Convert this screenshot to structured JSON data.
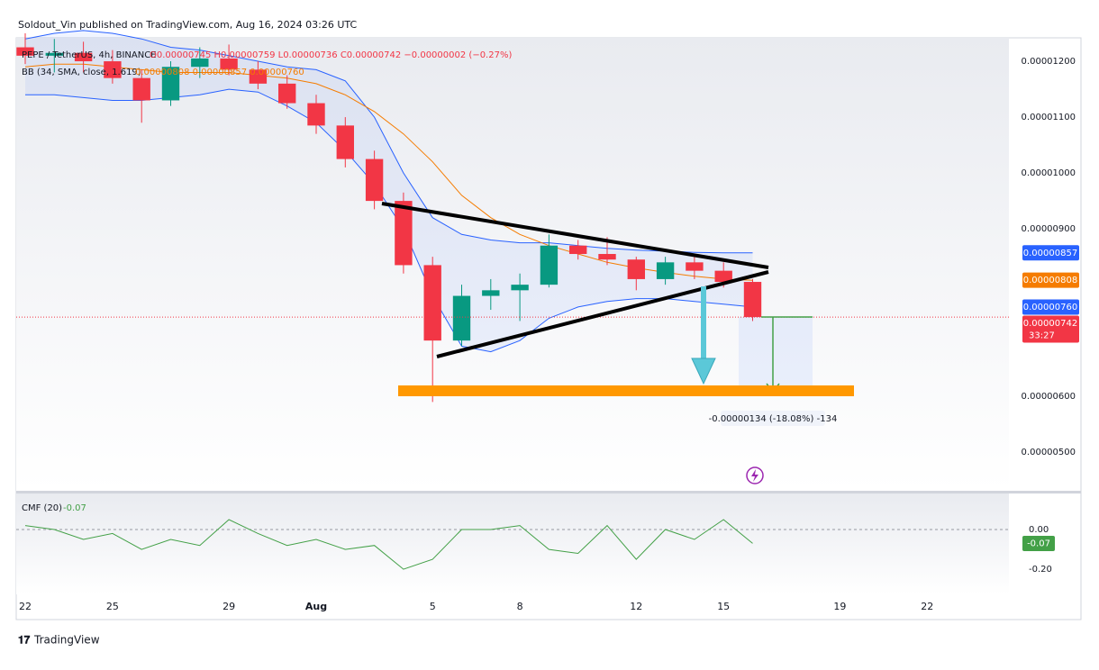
{
  "header": "Soldout_Vin published on TradingView.com, Aug 16, 2024 03:26 UTC",
  "footer": "TradingView",
  "chart_data": [
    {
      "type": "candlestick",
      "title": "PEPE / TetherUS, 4h, BINANCE",
      "ohlc_text": "O0.00000745 H0.00000759 L0.00000736 C0.00000742 −0.00000002 (−0.27%)",
      "categories": [
        "22",
        null,
        null,
        "25",
        null,
        null,
        null,
        "29",
        null,
        null,
        "Aug",
        null,
        null,
        null,
        "5",
        null,
        null,
        "8",
        null,
        null,
        null,
        "12",
        null,
        null,
        "15",
        null,
        null,
        null,
        "19",
        null,
        null,
        "22",
        null,
        null
      ],
      "series": [
        {
          "name": "PEPE / TetherUS",
          "up_color": "#089981",
          "down_color": "#f23645",
          "open": [
            1.225e-05,
            1.21e-05,
            1.215e-05,
            1.2e-05,
            1.17e-05,
            1.13e-05,
            1.19e-05,
            1.205e-05,
            1.185e-05,
            1.16e-05,
            1.125e-05,
            1.085e-05,
            1.025e-05,
            9.5e-06,
            8.35e-06,
            7e-06,
            7.8e-06,
            7.9e-06,
            8e-06,
            8.7e-06,
            8.55e-06,
            8.45e-06,
            8.1e-06,
            8.4e-06,
            8.25e-06,
            8.05e-06,
            null,
            null,
            null,
            null,
            null,
            null,
            null,
            null
          ],
          "high": [
            1.25e-05,
            1.24e-05,
            1.235e-05,
            1.22e-05,
            1.185e-05,
            1.2e-05,
            1.225e-05,
            1.23e-05,
            1.2e-05,
            1.175e-05,
            1.14e-05,
            1.1e-05,
            1.04e-05,
            9.65e-06,
            8.5e-06,
            8e-06,
            8.1e-06,
            8.2e-06,
            8.9e-06,
            8.8e-06,
            8.85e-06,
            8.5e-06,
            8.5e-06,
            8.55e-06,
            8.4e-06,
            8.1e-06,
            null,
            null,
            null,
            null,
            null,
            null,
            null,
            null
          ],
          "low": [
            1.195e-05,
            1.18e-05,
            1.18e-05,
            1.16e-05,
            1.09e-05,
            1.12e-05,
            1.17e-05,
            1.175e-05,
            1.15e-05,
            1.115e-05,
            1.07e-05,
            1.01e-05,
            9.35e-06,
            8.2e-06,
            5.9e-06,
            6.9e-06,
            7.55e-06,
            7.35e-06,
            7.95e-06,
            8.45e-06,
            8.35e-06,
            7.9e-06,
            8e-06,
            8.1e-06,
            7.95e-06,
            7.35e-06,
            null,
            null,
            null,
            null,
            null,
            null,
            null,
            null
          ],
          "close": [
            1.21e-05,
            1.215e-05,
            1.2e-05,
            1.17e-05,
            1.13e-05,
            1.19e-05,
            1.205e-05,
            1.185e-05,
            1.16e-05,
            1.125e-05,
            1.085e-05,
            1.025e-05,
            9.5e-06,
            8.35e-06,
            7e-06,
            7.8e-06,
            7.9e-06,
            8e-06,
            8.7e-06,
            8.55e-06,
            8.45e-06,
            8.1e-06,
            8.4e-06,
            8.25e-06,
            8.05e-06,
            7.42e-06,
            null,
            null,
            null,
            null,
            null,
            null,
            null,
            null
          ]
        }
      ],
      "bb": {
        "label": "BB (34, SMA, close, 1.619)",
        "values_text": "0.00000808 0.00000857 0.00000760",
        "band_color": "#2962ff",
        "basis_color": "#f57c00",
        "fill": "#2962ff",
        "upper": [
          1.24e-05,
          1.25e-05,
          1.255e-05,
          1.25e-05,
          1.24e-05,
          1.225e-05,
          1.22e-05,
          1.21e-05,
          1.2e-05,
          1.19e-05,
          1.185e-05,
          1.165e-05,
          1.1e-05,
          1e-05,
          9.2e-06,
          8.9e-06,
          8.8e-06,
          8.75e-06,
          8.75e-06,
          8.7e-06,
          8.65e-06,
          8.62e-06,
          8.6e-06,
          8.58e-06,
          8.57e-06,
          8.57e-06,
          null,
          null,
          null,
          null,
          null,
          null,
          null,
          null
        ],
        "basis": [
          1.19e-05,
          1.195e-05,
          1.195e-05,
          1.19e-05,
          1.185e-05,
          1.18e-05,
          1.18e-05,
          1.18e-05,
          1.175e-05,
          1.17e-05,
          1.16e-05,
          1.14e-05,
          1.11e-05,
          1.07e-05,
          1.02e-05,
          9.6e-06,
          9.2e-06,
          8.9e-06,
          8.7e-06,
          8.55e-06,
          8.4e-06,
          8.3e-06,
          8.22e-06,
          8.15e-06,
          8.1e-06,
          8.08e-06,
          null,
          null,
          null,
          null,
          null,
          null,
          null,
          null
        ],
        "lower": [
          1.14e-05,
          1.14e-05,
          1.135e-05,
          1.13e-05,
          1.13e-05,
          1.135e-05,
          1.14e-05,
          1.15e-05,
          1.145e-05,
          1.12e-05,
          1.09e-05,
          1.04e-05,
          9.8e-06,
          9e-06,
          7.8e-06,
          6.9e-06,
          6.8e-06,
          7e-06,
          7.4e-06,
          7.6e-06,
          7.7e-06,
          7.75e-06,
          7.75e-06,
          7.7e-06,
          7.65e-06,
          7.6e-06,
          null,
          null,
          null,
          null,
          null,
          null,
          null,
          null
        ]
      },
      "price_tags": [
        {
          "value": 8.57e-06,
          "label": "0.00000857",
          "color": "#2962ff"
        },
        {
          "value": 8.08e-06,
          "label": "0.00000808",
          "color": "#f57c00"
        },
        {
          "value": 7.6e-06,
          "label": "0.00000760",
          "color": "#2962ff"
        },
        {
          "value": 7.42e-06,
          "label": "0.00000742",
          "sub": "33:27",
          "color": "#f23645"
        }
      ],
      "measure_label": "-0.00000134 (-18.08%) -134",
      "ylim": [
        4.31e-06,
        1.242e-05
      ],
      "yticks": [
        {
          "value": 1.2e-05,
          "label": "0.00001200"
        },
        {
          "value": 1.1e-05,
          "label": "0.00001100"
        },
        {
          "value": 1e-05,
          "label": "0.00001000"
        },
        {
          "value": 9e-06,
          "label": "0.00000900"
        },
        {
          "value": 6e-06,
          "label": "0.00000600"
        },
        {
          "value": 5e-06,
          "label": "0.00000500"
        }
      ]
    },
    {
      "type": "line",
      "title": "CMF (20)",
      "last_label": "-0.07",
      "color": "#43a047",
      "values": [
        0.02,
        0.0,
        -0.05,
        -0.02,
        -0.1,
        -0.05,
        -0.08,
        0.05,
        -0.02,
        -0.08,
        -0.05,
        -0.1,
        -0.08,
        -0.2,
        -0.15,
        0.0,
        0.0,
        0.02,
        -0.1,
        -0.12,
        0.02,
        -0.15,
        0.0,
        -0.05,
        0.05,
        -0.07,
        null,
        null,
        null,
        null,
        null,
        null,
        null,
        null
      ],
      "ylim": [
        -0.327,
        0.182
      ],
      "yticks": [
        {
          "value": 0,
          "label": "0.00"
        },
        {
          "value": -0.2,
          "label": "-0.20"
        }
      ]
    }
  ]
}
